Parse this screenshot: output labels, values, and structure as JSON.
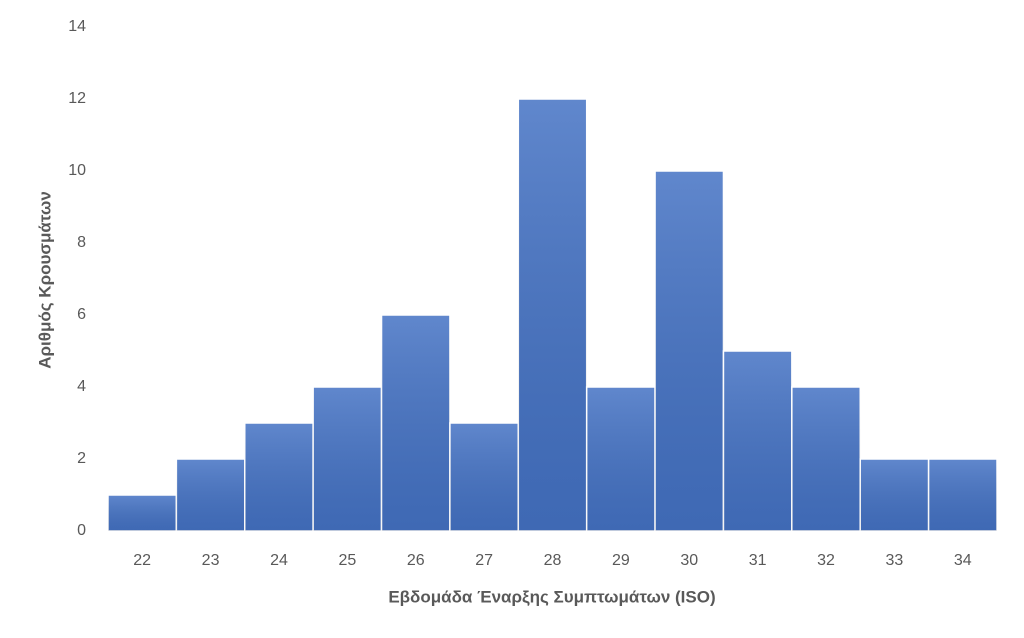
{
  "chart_data": {
    "type": "bar",
    "x_label": "Εβδομάδα Έναρξης Συμπτωμάτων (ISO)",
    "y_label": "Αριθμός Κρουσμάτων",
    "categories": [
      "22",
      "23",
      "24",
      "25",
      "26",
      "27",
      "28",
      "29",
      "30",
      "31",
      "32",
      "33",
      "34"
    ],
    "values": [
      1,
      2,
      3,
      4,
      6,
      3,
      12,
      4,
      10,
      5,
      4,
      2,
      2
    ],
    "color": "#4472c4",
    "ylim": [
      0,
      14
    ],
    "yticks": [
      0,
      2,
      4,
      6,
      8,
      10,
      12,
      14
    ],
    "grid": false
  }
}
